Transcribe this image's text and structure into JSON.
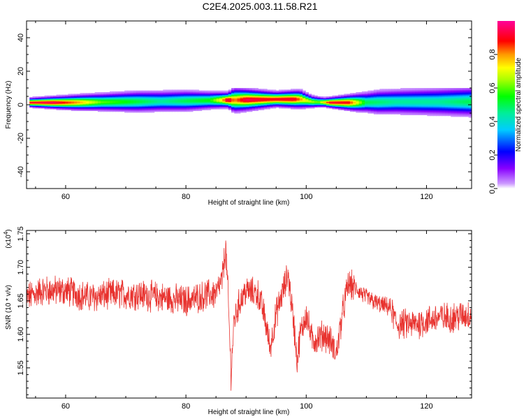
{
  "title": "C2E4.2025.003.11.58.R21",
  "chart_data": [
    {
      "type": "heatmap",
      "xlabel": "Height of straight line (km)",
      "ylabel": "Frequency (Hz)",
      "xlim": [
        53.5,
        127.5
      ],
      "ylim": [
        -50,
        50
      ],
      "xticks": [
        60,
        80,
        100,
        120
      ],
      "yticks": [
        40,
        20,
        0,
        -20,
        -40
      ],
      "ytick_labels": [
        "40",
        "20",
        "0",
        "-20",
        "-40"
      ],
      "band": {
        "center_hz": [
          [
            54,
            1.5
          ],
          [
            60,
            1.5
          ],
          [
            70,
            2
          ],
          [
            80,
            2.5
          ],
          [
            86,
            3
          ],
          [
            88,
            3
          ],
          [
            95,
            3.5
          ],
          [
            99,
            3.5
          ],
          [
            101,
            2
          ],
          [
            104,
            1.5
          ],
          [
            108,
            1.5
          ],
          [
            115,
            2
          ],
          [
            122,
            2
          ],
          [
            127.5,
            2
          ]
        ],
        "width_hz": [
          [
            54,
            2
          ],
          [
            62,
            4
          ],
          [
            72,
            6
          ],
          [
            80,
            6
          ],
          [
            87,
            4
          ],
          [
            88,
            7
          ],
          [
            95,
            4
          ],
          [
            99,
            5
          ],
          [
            101,
            3
          ],
          [
            103,
            2
          ],
          [
            107,
            4
          ],
          [
            112,
            7
          ],
          [
            120,
            8
          ],
          [
            127.5,
            9
          ]
        ],
        "intensity": [
          [
            54,
            0.92
          ],
          [
            58,
            0.95
          ],
          [
            62,
            0.8
          ],
          [
            66,
            0.6
          ],
          [
            70,
            0.55
          ],
          [
            76,
            0.45
          ],
          [
            80,
            0.5
          ],
          [
            84,
            0.55
          ],
          [
            86,
            0.75
          ],
          [
            87,
            0.98
          ],
          [
            88,
            0.8
          ],
          [
            90,
            0.95
          ],
          [
            94,
            0.9
          ],
          [
            98,
            0.92
          ],
          [
            100,
            0.7
          ],
          [
            102,
            0.6
          ],
          [
            104,
            0.92
          ],
          [
            107,
            0.9
          ],
          [
            110,
            0.5
          ],
          [
            115,
            0.45
          ],
          [
            122,
            0.45
          ],
          [
            127.5,
            0.5
          ]
        ]
      },
      "colorbar": {
        "label": "Normalized spectral amplitude",
        "ticks": [
          0.0,
          0.2,
          0.4,
          0.6,
          0.8
        ],
        "tick_labels": [
          "0.0",
          "0.2",
          "0.4",
          "0.6",
          "0.8"
        ],
        "range": [
          0,
          1
        ]
      }
    },
    {
      "type": "line",
      "xlabel": "Height of straight line (km)",
      "ylabel": "SNR (10 * v/v)",
      "multiplier_label": "(x10",
      "multiplier_exp": "4",
      "multiplier_close": ")",
      "xlim": [
        53.5,
        127.5
      ],
      "ylim": [
        1.505,
        1.755
      ],
      "xticks": [
        60,
        80,
        100,
        120
      ],
      "yticks": [
        1.55,
        1.6,
        1.65,
        1.7,
        1.75
      ],
      "ytick_labels": [
        "1.55",
        "1.60",
        "1.65",
        "1.70",
        "1.75"
      ],
      "series": [
        {
          "color": "#e8322e",
          "noise_amplitude": 0.02,
          "trend": [
            [
              53.5,
              1.655
            ],
            [
              56,
              1.665
            ],
            [
              60,
              1.665
            ],
            [
              64,
              1.655
            ],
            [
              68,
              1.66
            ],
            [
              72,
              1.66
            ],
            [
              76,
              1.655
            ],
            [
              80,
              1.65
            ],
            [
              82,
              1.655
            ],
            [
              84,
              1.66
            ],
            [
              85,
              1.66
            ],
            [
              86,
              1.68
            ],
            [
              86.6,
              1.73
            ],
            [
              87,
              1.66
            ],
            [
              87.5,
              1.54
            ],
            [
              88,
              1.62
            ],
            [
              89,
              1.65
            ],
            [
              90,
              1.665
            ],
            [
              92,
              1.66
            ],
            [
              93,
              1.63
            ],
            [
              94,
              1.58
            ],
            [
              95,
              1.63
            ],
            [
              96,
              1.66
            ],
            [
              97,
              1.69
            ],
            [
              98,
              1.61
            ],
            [
              98.5,
              1.56
            ],
            [
              99,
              1.6
            ],
            [
              100,
              1.63
            ],
            [
              101,
              1.59
            ],
            [
              103,
              1.6
            ],
            [
              104,
              1.59
            ],
            [
              105,
              1.57
            ],
            [
              106,
              1.63
            ],
            [
              107,
              1.675
            ],
            [
              108,
              1.67
            ],
            [
              110,
              1.655
            ],
            [
              112,
              1.645
            ],
            [
              114,
              1.64
            ],
            [
              115,
              1.615
            ],
            [
              118,
              1.615
            ],
            [
              120,
              1.62
            ],
            [
              122,
              1.625
            ],
            [
              124,
              1.625
            ],
            [
              127.5,
              1.63
            ]
          ]
        }
      ]
    }
  ]
}
